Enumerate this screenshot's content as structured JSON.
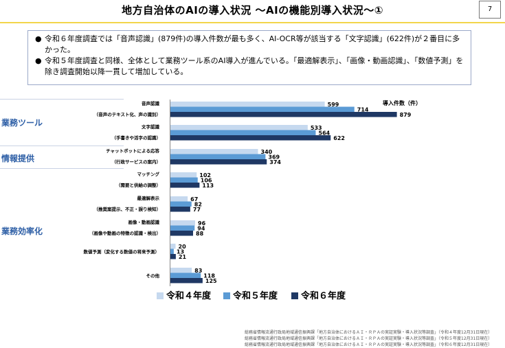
{
  "header": {
    "title": "地方自治体のAIの導入状況 ～AIの機能別導入状況～①",
    "page_number": "7"
  },
  "summary": {
    "bullet": "●",
    "items": [
      "令和６年度調査では「音声認識」(879件)の導入件数が最も多く、AI-OCR等が該当する「文字認識」(622件)が２番目に多かった。",
      "令和５年度調査と同様、全体として業務ツール系のAI導入が進んでいる。「最適解表示」、「画像・動画認識」、「数値予測」を除き調査開始以降一貫して増加している。"
    ]
  },
  "sections": {
    "tools": "業務ツール",
    "info": "情報提供",
    "efficiency": "業務効率化"
  },
  "colors": {
    "r4": "#c6d9ef",
    "r5": "#5b9bd5",
    "r6": "#1f3864",
    "accent_line": "#f2d54a",
    "section_text": "#2e5fa6"
  },
  "chart_data": {
    "type": "bar",
    "orientation": "horizontal",
    "ylabel": "導入件数（件）",
    "categories": [
      {
        "label": "音声認識",
        "sub": "（音声のテキスト化、声の識別）"
      },
      {
        "label": "文字認識",
        "sub": "（手書きや活字の認識）"
      },
      {
        "label": "チャットボットによる応答",
        "sub": "（行政サービスの案内）"
      },
      {
        "label": "マッチング",
        "sub": "（需要と供給の調整）"
      },
      {
        "label": "最適解表示",
        "sub": "（推奨案提示、不正・誤り検知）"
      },
      {
        "label": "画像・動画認識",
        "sub": "（画像や動画の特徴の認識・検出）"
      },
      {
        "label": "数値予測（変化する数値の将来予測）",
        "sub": ""
      },
      {
        "label": "その他",
        "sub": ""
      }
    ],
    "series": [
      {
        "name": "令和４年度",
        "values": [
          599,
          533,
          340,
          102,
          67,
          96,
          20,
          83
        ]
      },
      {
        "name": "令和５年度",
        "values": [
          714,
          564,
          369,
          106,
          82,
          94,
          13,
          118
        ]
      },
      {
        "name": "令和６年度",
        "values": [
          879,
          622,
          374,
          113,
          77,
          88,
          21,
          125
        ]
      }
    ],
    "xlim": [
      0,
      1000
    ],
    "grid": false,
    "legend_position": "bottom"
  },
  "source": {
    "lines": [
      "総務省情報流通行政局地域通信振興課「地方自治体におけるＡＩ・ＲＰＡの実証実験・導入状況等調査」（令和４年度12月31日現在）",
      "総務省情報流通行政局地域通信振興課「地方自治体におけるＡＩ・ＲＰＡの実証実験・導入状況等調査」（令和５年度12月31日現在）",
      "総務省情報流通行政局地域通信振興課「地方自治体におけるＡＩ・ＲＰＡの実証実験・導入状況等調査」（令和６年度12月31日現在）"
    ]
  }
}
